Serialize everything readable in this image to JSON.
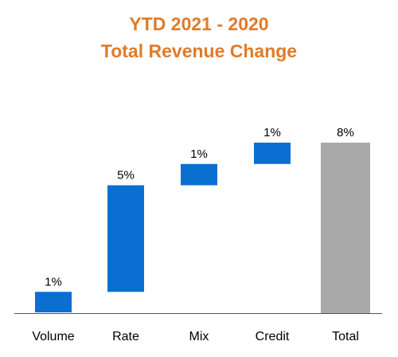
{
  "colors": {
    "title": "#E07B28",
    "delta_bar": "#0A6FD0",
    "total_bar": "#A9A9A9",
    "axis": "#555555"
  },
  "chart_data": {
    "type": "bar",
    "subtype": "waterfall",
    "title": "YTD 2021 - 2020",
    "subtitle": "Total Revenue Change",
    "categories": [
      "Volume",
      "Rate",
      "Mix",
      "Credit",
      "Total"
    ],
    "values": [
      1,
      5,
      1,
      1,
      8
    ],
    "data_labels": [
      "1%",
      "5%",
      "1%",
      "1%",
      "8%"
    ],
    "is_total": [
      false,
      false,
      false,
      false,
      true
    ],
    "unit": "%",
    "xlabel": "",
    "ylabel": "",
    "grid": false,
    "legend": "none"
  }
}
